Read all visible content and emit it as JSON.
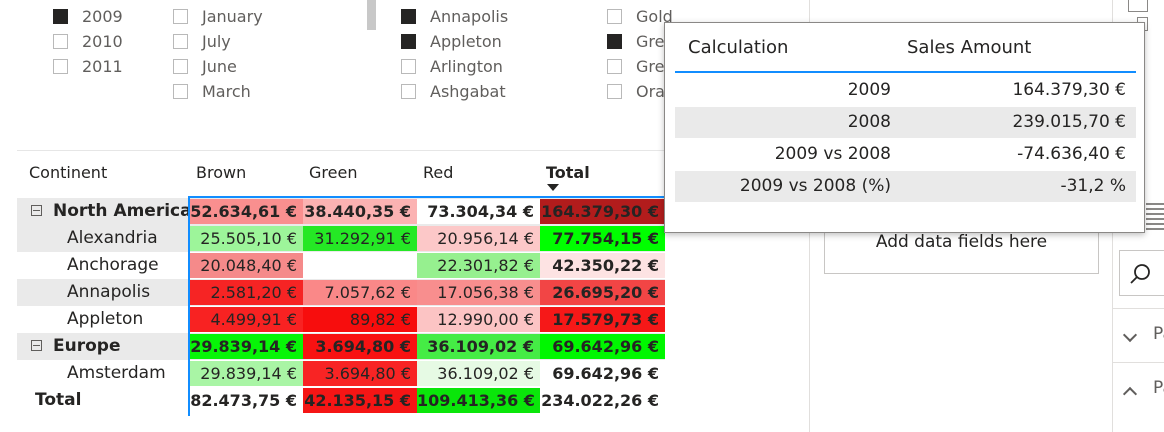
{
  "slicers": {
    "years": [
      {
        "label": "2009",
        "checked": true
      },
      {
        "label": "2010",
        "checked": false
      },
      {
        "label": "2011",
        "checked": false
      }
    ],
    "months": [
      {
        "label": "January",
        "checked": false
      },
      {
        "label": "July",
        "checked": false
      },
      {
        "label": "June",
        "checked": false
      },
      {
        "label": "March",
        "checked": false
      }
    ],
    "cities": [
      {
        "label": "Annapolis",
        "checked": true
      },
      {
        "label": "Appleton",
        "checked": true
      },
      {
        "label": "Arlington",
        "checked": false
      },
      {
        "label": "Ashgabat",
        "checked": false
      }
    ],
    "colors": [
      {
        "label": "Gold",
        "checked": false
      },
      {
        "label": "Gre",
        "checked": true
      },
      {
        "label": "Gre",
        "checked": false
      },
      {
        "label": "Ora",
        "checked": false
      }
    ]
  },
  "matrix": {
    "headers": {
      "row": "Continent",
      "cols": [
        "Brown",
        "Green",
        "Red"
      ],
      "total": "Total"
    },
    "rows": [
      {
        "label": "North America",
        "level": 0,
        "shade": true,
        "cells": [
          {
            "text": "52.634,61 €",
            "bg": "#f98f8f"
          },
          {
            "text": "38.440,35 €",
            "bg": "#fbb2b2"
          },
          {
            "text": "73.304,34 €",
            "bg": "#ffffff"
          },
          {
            "text": "164.379,30 €",
            "bg": "#b21c1c"
          }
        ]
      },
      {
        "label": "Alexandria",
        "level": 1,
        "shade": true,
        "cells": [
          {
            "text": "25.505,10 €",
            "bg": "#9df59a"
          },
          {
            "text": "31.292,91 €",
            "bg": "#25e825"
          },
          {
            "text": "20.956,14 €",
            "bg": "#fcc8c8"
          },
          {
            "text": "77.754,15 €",
            "bg": "#00ff00"
          }
        ]
      },
      {
        "label": "Anchorage",
        "level": 1,
        "shade": false,
        "cells": [
          {
            "text": "20.048,40 €",
            "bg": "#f58a8a"
          },
          {
            "text": "",
            "bg": "#ffffff"
          },
          {
            "text": "22.301,82 €",
            "bg": "#96f08f"
          },
          {
            "text": "42.350,22 €",
            "bg": "#fde3e3"
          }
        ]
      },
      {
        "label": "Annapolis",
        "level": 1,
        "shade": true,
        "cells": [
          {
            "text": "2.581,20 €",
            "bg": "#f62424"
          },
          {
            "text": "7.057,62 €",
            "bg": "#fa8888"
          },
          {
            "text": "17.056,38 €",
            "bg": "#f88e8e"
          },
          {
            "text": "26.695,20 €",
            "bg": "#f24545"
          }
        ]
      },
      {
        "label": "Appleton",
        "level": 1,
        "shade": false,
        "cells": [
          {
            "text": "4.499,91 €",
            "bg": "#f82222"
          },
          {
            "text": "89,82 €",
            "bg": "#f70d0d"
          },
          {
            "text": "12.990,00 €",
            "bg": "#fcc4c4"
          },
          {
            "text": "17.579,73 €",
            "bg": "#f61818"
          }
        ]
      },
      {
        "label": "Europe",
        "level": 0,
        "shade": true,
        "cells": [
          {
            "text": "29.839,14 €",
            "bg": "#07f507"
          },
          {
            "text": "3.694,80 €",
            "bg": "#f81212"
          },
          {
            "text": "36.109,02 €",
            "bg": "#45ec45"
          },
          {
            "text": "69.642,96 €",
            "bg": "#00f700"
          }
        ]
      },
      {
        "label": "Amsterdam",
        "level": 1,
        "shade": false,
        "cells": [
          {
            "text": "29.839,14 €",
            "bg": "#a9f5a5"
          },
          {
            "text": "3.694,80 €",
            "bg": "#f82424"
          },
          {
            "text": "36.109,02 €",
            "bg": "#e6fae4"
          },
          {
            "text": "69.642,96 €",
            "bg": "#ffffff"
          }
        ]
      },
      {
        "label": "Total",
        "level": -1,
        "shade": false,
        "cells": [
          {
            "text": "82.473,75 €",
            "bg": "#ffffff"
          },
          {
            "text": "42.135,15 €",
            "bg": "#f51515"
          },
          {
            "text": "109.413,36 €",
            "bg": "#0ae60a"
          },
          {
            "text": "234.022,26 €",
            "bg": "#ffffff"
          }
        ]
      }
    ]
  },
  "tooltip": {
    "headers": {
      "left": "Calculation",
      "right": "Sales Amount"
    },
    "rows": [
      {
        "calc": "2009",
        "amount": "164.379,30 €",
        "shade": false
      },
      {
        "calc": "2008",
        "amount": "239.015,70 €",
        "shade": true
      },
      {
        "calc": "2009 vs 2008",
        "amount": "-74.636,40 €",
        "shade": false
      },
      {
        "calc": "2009 vs 2008 (%)",
        "amount": "-31,2 %",
        "shade": true
      }
    ]
  },
  "pane": {
    "drop_zone": "Add data fields here",
    "side_items": [
      {
        "label": "Pa",
        "icon": "chevron-down-icon"
      },
      {
        "label": "Pa",
        "icon": "chevron-up-icon"
      }
    ],
    "search_icon": "search-icon"
  }
}
